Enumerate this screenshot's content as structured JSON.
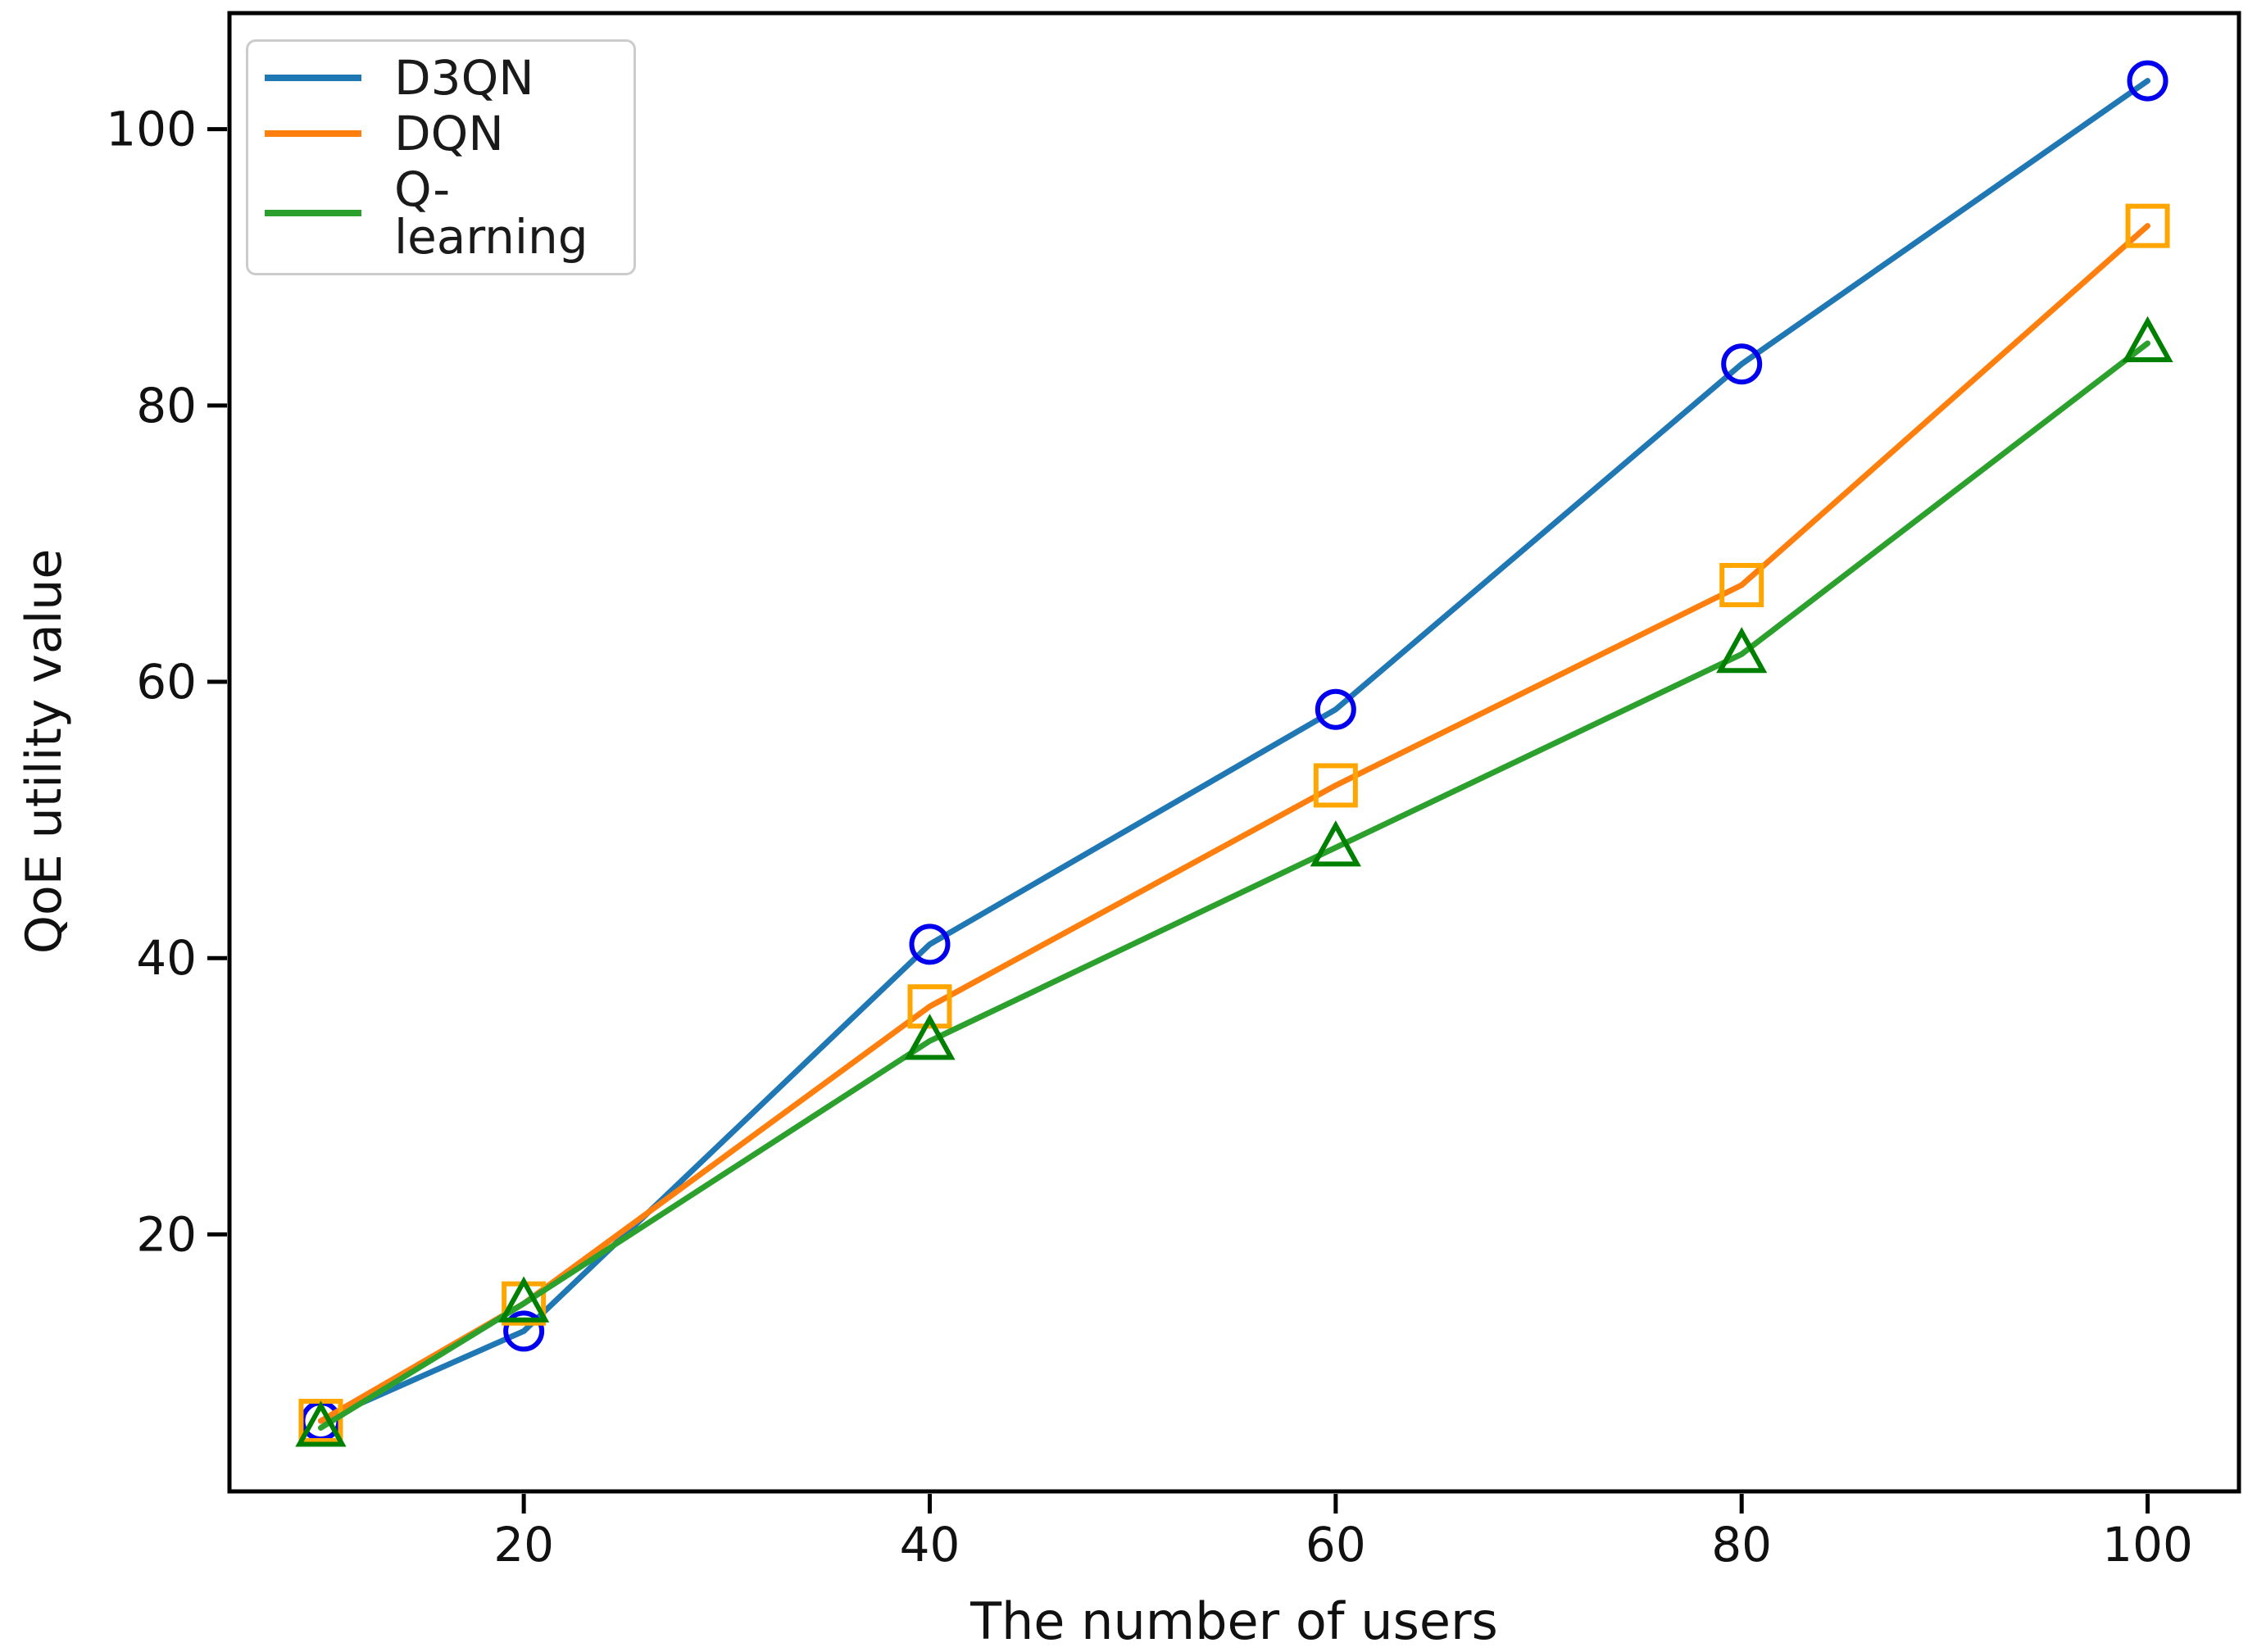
{
  "figure": {
    "background_color": "#ffffff",
    "spine_color": "#000000",
    "tick_label_color": "#111111"
  },
  "chart_data": {
    "type": "line",
    "title": "",
    "xlabel": "The number of users",
    "ylabel": "QoE utility value",
    "x": [
      10,
      20,
      40,
      60,
      80,
      100
    ],
    "series": [
      {
        "name": "D3QN",
        "line_color": "#1f77b4",
        "marker": "circle",
        "marker_color": "#0000ee",
        "values": [
          6.5,
          13,
          41,
          58,
          83,
          103.5
        ]
      },
      {
        "name": "DQN",
        "line_color": "#ff7f0e",
        "marker": "square",
        "marker_color": "#ffa500",
        "values": [
          6.5,
          15,
          36.5,
          52.5,
          67,
          93
        ]
      },
      {
        "name": "Q-learning",
        "line_color": "#2ca02c",
        "marker": "triangle",
        "marker_color": "#008000",
        "values": [
          6,
          15,
          34,
          48,
          62,
          84.5
        ]
      }
    ],
    "xticks": [
      20,
      40,
      60,
      80,
      100
    ],
    "yticks": [
      20,
      40,
      60,
      80,
      100
    ],
    "xlim": [
      5.5,
      104.5
    ],
    "ylim": [
      1.4,
      108.4
    ],
    "grid": false,
    "legend": {
      "position": "upper-left",
      "border_color": "#cccccc"
    }
  }
}
